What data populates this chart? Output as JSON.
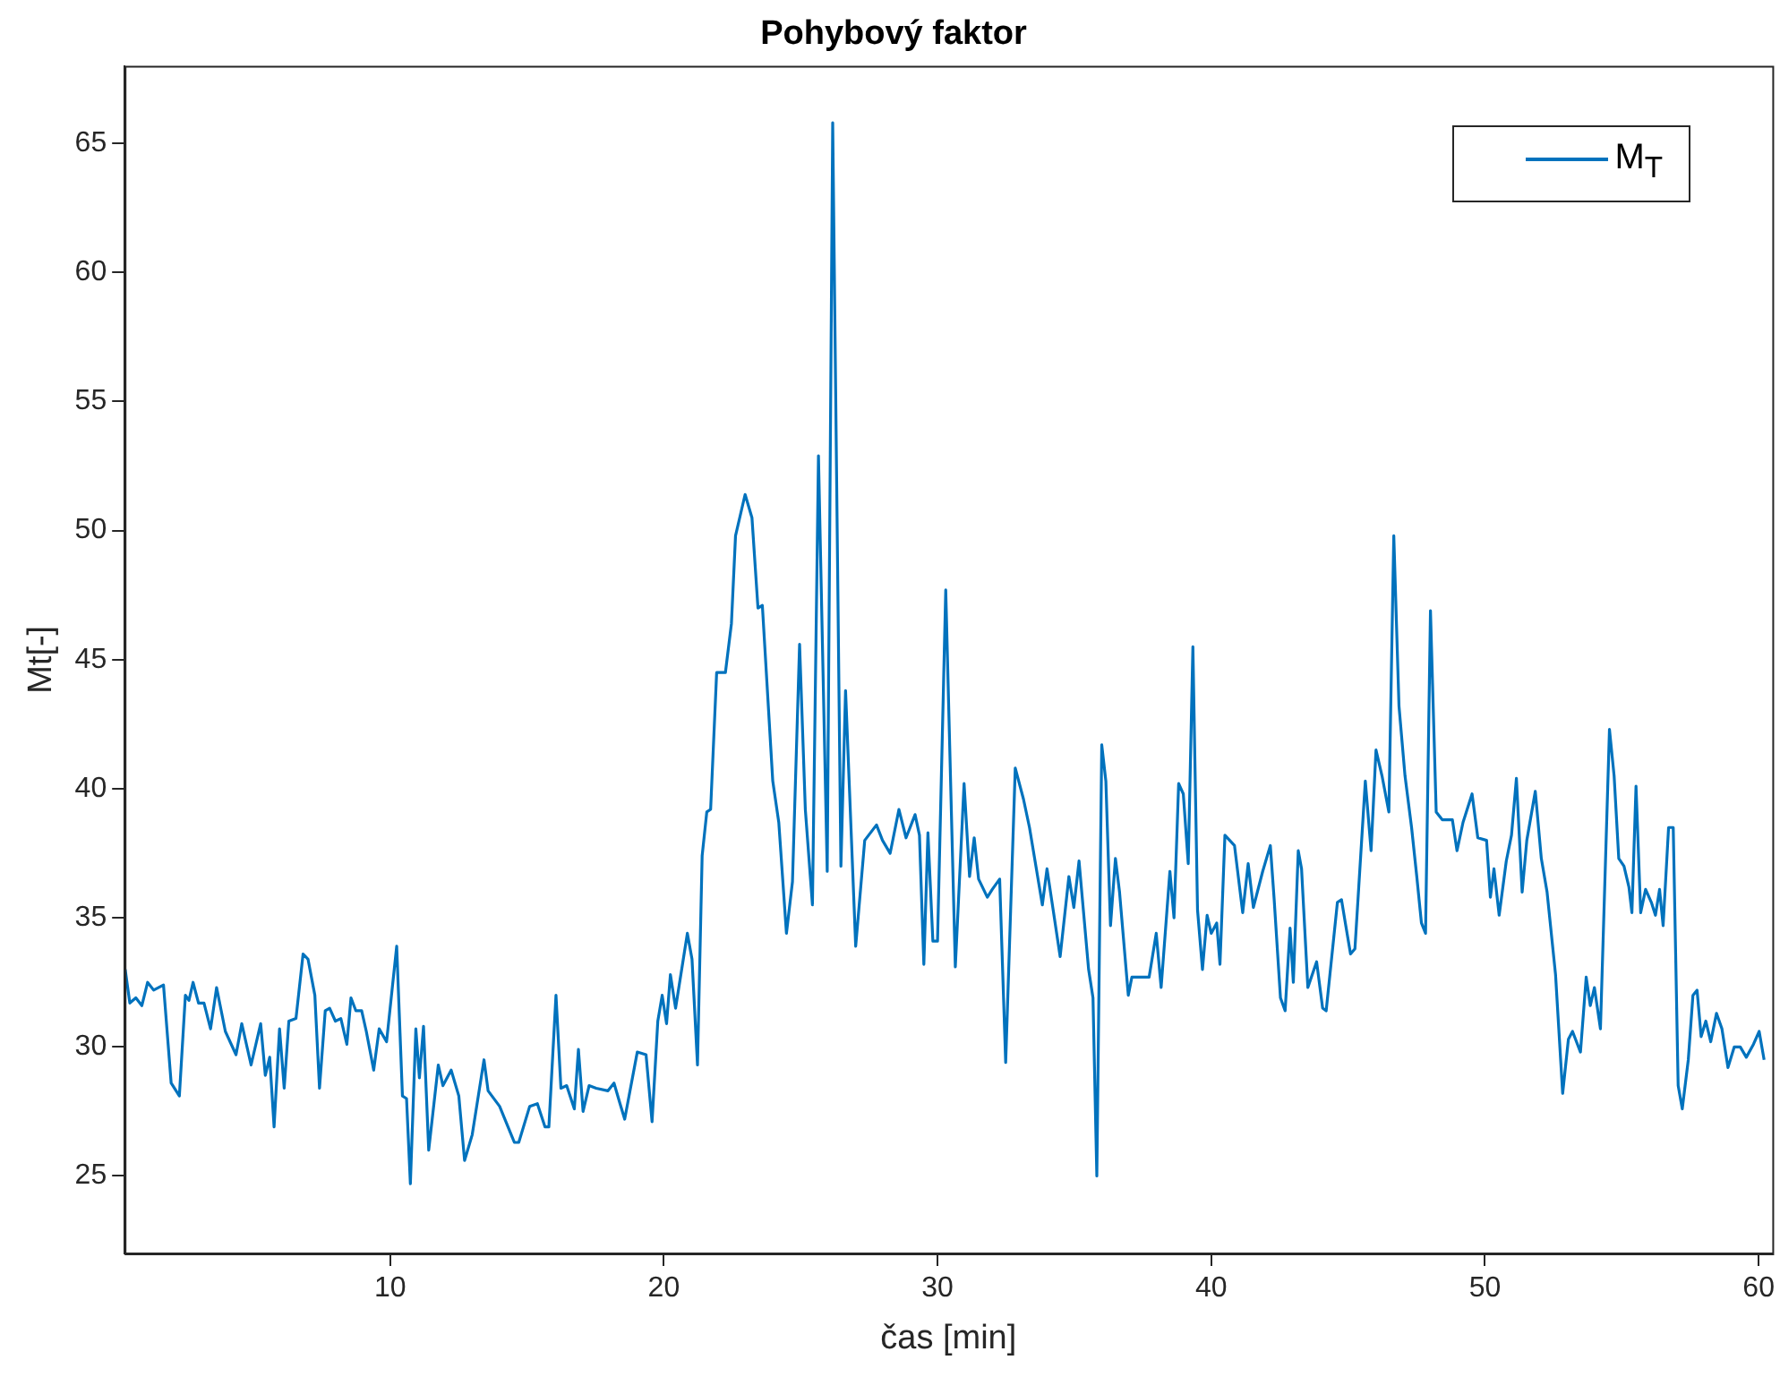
{
  "chart_data": {
    "type": "line",
    "title": "Pohybový faktor",
    "xlabel": "čas [min]",
    "ylabel": "Mt[-]",
    "xlim": [
      0.3,
      60.5
    ],
    "xticks": [
      10,
      20,
      30,
      40,
      50,
      60
    ],
    "ylim": [
      22,
      68
    ],
    "yticks": [
      25,
      30,
      35,
      40,
      45,
      50,
      55,
      60,
      65
    ],
    "grid": false,
    "legend": "top right",
    "line_style": "solid",
    "marker": "none",
    "series": [
      {
        "name": "M$_{T}$",
        "color": "#0072bd",
        "x": [
          0.32,
          0.49,
          0.71,
          0.93,
          1.14,
          1.36,
          1.72,
          2.0,
          2.3,
          2.52,
          2.65,
          2.8,
          3.0,
          3.2,
          3.44,
          3.66,
          3.98,
          4.37,
          4.58,
          4.92,
          5.27,
          5.44,
          5.6,
          5.76,
          5.96,
          6.13,
          6.3,
          6.56,
          6.82,
          7.0,
          7.25,
          7.42,
          7.63,
          7.79,
          8.0,
          8.2,
          8.42,
          8.57,
          8.75,
          8.96,
          9.13,
          9.4,
          9.6,
          9.87,
          10.24,
          10.45,
          10.6,
          10.74,
          10.94,
          11.07,
          11.22,
          11.41,
          11.76,
          11.93,
          12.23,
          12.51,
          12.72,
          13.0,
          13.43,
          13.58,
          14.0,
          14.54,
          14.7,
          15.1,
          15.38,
          15.66,
          15.8,
          16.06,
          16.24,
          16.45,
          16.73,
          16.88,
          17.05,
          17.27,
          17.53,
          17.96,
          18.18,
          18.4,
          18.57,
          19.03,
          19.35,
          19.57,
          19.78,
          19.94,
          20.1,
          20.24,
          20.43,
          20.86,
          21.03,
          21.23,
          21.4,
          21.57,
          21.71,
          21.93,
          22.25,
          22.47,
          22.62,
          22.97,
          23.22,
          23.44,
          23.6,
          23.98,
          24.2,
          24.48,
          24.7,
          24.96,
          25.17,
          25.43,
          25.65,
          25.97,
          26.17,
          26.47,
          26.64,
          27.01,
          27.34,
          27.77,
          27.99,
          28.27,
          28.59,
          28.85,
          29.18,
          29.34,
          29.5,
          29.65,
          29.83,
          30.0,
          30.3,
          30.65,
          30.97,
          31.17,
          31.34,
          31.5,
          31.82,
          32.0,
          32.27,
          32.49,
          32.84,
          33.14,
          33.36,
          33.83,
          34.0,
          34.48,
          34.8,
          34.98,
          35.17,
          35.52,
          35.68,
          35.82,
          36.0,
          36.15,
          36.32,
          36.5,
          36.65,
          36.97,
          37.1,
          37.51,
          37.73,
          37.99,
          38.17,
          38.49,
          38.64,
          38.81,
          38.98,
          39.16,
          39.33,
          39.5,
          39.68,
          39.85,
          40.0,
          40.2,
          40.32,
          40.5,
          40.85,
          41.15,
          41.35,
          41.54,
          41.88,
          42.16,
          42.3,
          42.53,
          42.7,
          42.88,
          43.0,
          43.18,
          43.3,
          43.53,
          43.85,
          44.07,
          44.2,
          44.61,
          44.76,
          44.9,
          45.09,
          45.25,
          45.63,
          45.84,
          46.02,
          46.24,
          46.49,
          46.67,
          46.86,
          47.08,
          47.32,
          47.51,
          47.68,
          47.83,
          48.01,
          48.22,
          48.44,
          48.81,
          48.98,
          49.2,
          49.53,
          49.74,
          50.06,
          50.2,
          50.33,
          50.52,
          50.78,
          50.97,
          51.15,
          51.36,
          51.53,
          51.84,
          52.06,
          52.27,
          52.58,
          52.84,
          53.05,
          53.2,
          53.49,
          53.7,
          53.85,
          54.0,
          54.22,
          54.55,
          54.72,
          54.89,
          55.08,
          55.26,
          55.37,
          55.52,
          55.69,
          55.87,
          56.08,
          56.23,
          56.38,
          56.51,
          56.71,
          56.88,
          57.06,
          57.21,
          57.43,
          57.6,
          57.75,
          57.9,
          58.07,
          58.25,
          58.46,
          58.66,
          58.88,
          59.11,
          59.33,
          59.55,
          59.81,
          60.02,
          60.2
        ],
        "values": [
          33.0,
          31.7,
          31.9,
          31.6,
          32.5,
          32.2,
          32.4,
          28.6,
          28.1,
          32.0,
          31.8,
          32.5,
          31.7,
          31.7,
          30.7,
          32.3,
          30.6,
          29.7,
          30.9,
          29.3,
          30.9,
          28.9,
          29.6,
          26.9,
          30.7,
          28.4,
          31.0,
          31.1,
          33.6,
          33.4,
          32.0,
          28.4,
          31.4,
          31.5,
          31.0,
          31.1,
          30.1,
          31.9,
          31.4,
          31.4,
          30.6,
          29.1,
          30.7,
          30.2,
          33.9,
          28.1,
          28.0,
          24.7,
          30.7,
          28.8,
          30.8,
          26.0,
          29.3,
          28.5,
          29.1,
          28.1,
          25.6,
          26.6,
          29.5,
          28.3,
          27.7,
          26.3,
          26.3,
          27.7,
          27.8,
          26.9,
          26.9,
          32.0,
          28.4,
          28.5,
          27.6,
          29.9,
          27.5,
          28.5,
          28.4,
          28.3,
          28.6,
          27.8,
          27.2,
          29.8,
          29.7,
          27.1,
          31.0,
          32.0,
          30.9,
          32.8,
          31.5,
          34.4,
          33.4,
          29.3,
          37.4,
          39.1,
          39.2,
          44.5,
          44.5,
          46.4,
          49.8,
          51.4,
          50.5,
          47.0,
          47.1,
          40.3,
          38.7,
          34.4,
          36.4,
          45.6,
          39.2,
          35.5,
          52.9,
          36.8,
          65.8,
          37.0,
          43.8,
          33.9,
          38.0,
          38.6,
          38.0,
          37.5,
          39.2,
          38.1,
          39.0,
          38.2,
          33.2,
          38.3,
          34.1,
          34.1,
          47.7,
          33.1,
          40.2,
          36.6,
          38.1,
          36.5,
          35.8,
          36.1,
          36.5,
          29.4,
          40.8,
          39.6,
          38.5,
          35.5,
          36.9,
          33.5,
          36.6,
          35.4,
          37.2,
          33.0,
          31.9,
          25.0,
          41.7,
          40.3,
          34.7,
          37.3,
          36.0,
          32.0,
          32.7,
          32.7,
          32.7,
          34.4,
          32.3,
          36.8,
          35.0,
          40.2,
          39.8,
          37.1,
          45.5,
          35.3,
          33.0,
          35.1,
          34.4,
          34.8,
          33.2,
          38.2,
          37.8,
          35.2,
          37.1,
          35.4,
          36.8,
          37.8,
          35.7,
          31.9,
          31.4,
          34.6,
          32.5,
          37.6,
          36.9,
          32.3,
          33.3,
          31.5,
          31.4,
          35.6,
          35.7,
          34.8,
          33.6,
          33.8,
          40.3,
          37.6,
          41.5,
          40.5,
          39.1,
          49.8,
          43.2,
          40.5,
          38.5,
          36.6,
          34.8,
          34.4,
          46.9,
          39.1,
          38.8,
          38.8,
          37.6,
          38.7,
          39.8,
          38.1,
          38.0,
          35.8,
          36.9,
          35.1,
          37.2,
          38.2,
          40.4,
          36.0,
          38.0,
          39.9,
          37.3,
          36.0,
          32.8,
          28.2,
          30.3,
          30.6,
          29.8,
          32.7,
          31.6,
          32.3,
          30.7,
          42.3,
          40.5,
          37.3,
          37.0,
          36.2,
          35.2,
          40.1,
          35.2,
          36.1,
          35.6,
          35.1,
          36.1,
          34.7,
          38.5,
          38.5,
          28.5,
          27.6,
          29.5,
          32.0,
          32.2,
          30.4,
          31.0,
          30.2,
          31.3,
          30.7,
          29.2,
          30.0,
          30.0,
          29.6,
          30.1,
          30.6,
          29.5
        ]
      }
    ]
  }
}
